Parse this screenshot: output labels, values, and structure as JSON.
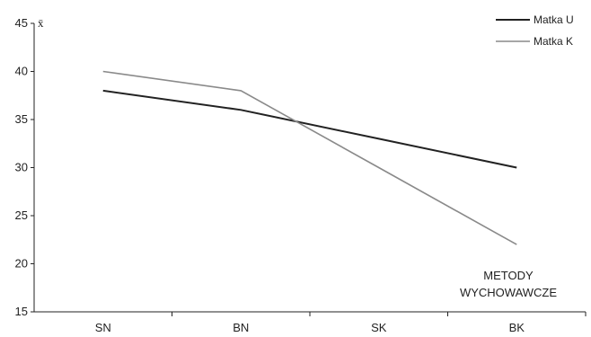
{
  "chart_data": {
    "type": "line",
    "categories": [
      "SN",
      "BN",
      "SK",
      "BK"
    ],
    "series": [
      {
        "name": "Matka U",
        "values": [
          38,
          36,
          33,
          30
        ],
        "color": "#222222"
      },
      {
        "name": "Matka K",
        "values": [
          40,
          38,
          30,
          22
        ],
        "color": "#8a8a8a"
      }
    ],
    "ylabel": "x̄",
    "ylim": [
      15,
      45
    ],
    "yticks": [
      15,
      20,
      25,
      30,
      35,
      40,
      45
    ],
    "annotation_lines": [
      "METODY",
      "WYCHOWAWCZE"
    ],
    "legend_position": "top-right",
    "grid": false
  }
}
